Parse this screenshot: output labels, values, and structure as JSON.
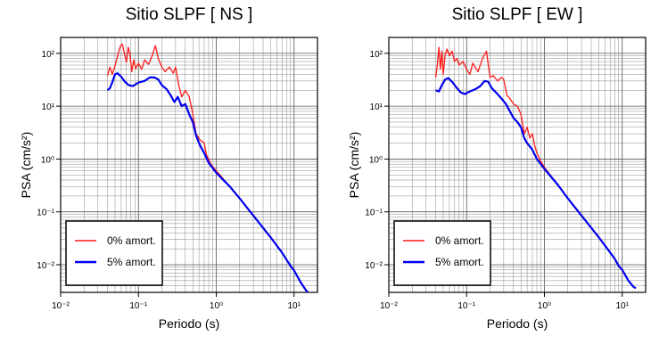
{
  "chart_data": [
    {
      "type": "line",
      "title": "Sitio SLPF [ NS ]",
      "xlabel": "Periodo (s)",
      "ylabel": "PSA (cm/s²)",
      "xscale": "log",
      "yscale": "log",
      "xlim": [
        0.01,
        20
      ],
      "ylim": [
        0.003,
        200
      ],
      "grid": true,
      "legend": "bottom-left",
      "xticks": [
        "10⁻²",
        "10⁻¹",
        "10⁰",
        "10¹"
      ],
      "yticks": [
        "10⁻²",
        "10⁻¹",
        "10⁰",
        "10¹",
        "10²"
      ],
      "series": [
        {
          "name": "0% amort.",
          "color": "#ff1a1a",
          "points": [
            [
              0.04,
              38
            ],
            [
              0.043,
              55
            ],
            [
              0.046,
              40
            ],
            [
              0.05,
              58
            ],
            [
              0.053,
              80
            ],
            [
              0.056,
              110
            ],
            [
              0.059,
              140
            ],
            [
              0.062,
              150
            ],
            [
              0.066,
              100
            ],
            [
              0.07,
              68
            ],
            [
              0.074,
              130
            ],
            [
              0.078,
              95
            ],
            [
              0.082,
              45
            ],
            [
              0.087,
              75
            ],
            [
              0.092,
              52
            ],
            [
              0.1,
              65
            ],
            [
              0.11,
              50
            ],
            [
              0.12,
              75
            ],
            [
              0.135,
              62
            ],
            [
              0.15,
              90
            ],
            [
              0.165,
              140
            ],
            [
              0.18,
              80
            ],
            [
              0.2,
              55
            ],
            [
              0.22,
              45
            ],
            [
              0.25,
              55
            ],
            [
              0.28,
              42
            ],
            [
              0.3,
              55
            ],
            [
              0.33,
              25
            ],
            [
              0.36,
              15
            ],
            [
              0.4,
              20
            ],
            [
              0.45,
              15
            ],
            [
              0.5,
              7
            ],
            [
              0.55,
              3
            ],
            [
              0.62,
              2.3
            ],
            [
              0.7,
              2.0
            ],
            [
              0.75,
              1.2
            ],
            [
              0.85,
              0.8
            ],
            [
              1.0,
              0.6
            ],
            [
              1.5,
              0.3
            ],
            [
              2,
              0.18
            ],
            [
              3,
              0.085
            ],
            [
              5,
              0.033
            ],
            [
              7,
              0.017
            ],
            [
              9,
              0.0095
            ],
            [
              10,
              0.0078
            ],
            [
              12,
              0.0048
            ],
            [
              14,
              0.0034
            ],
            [
              15,
              0.003
            ]
          ]
        },
        {
          "name": "5% amort.",
          "color": "#0000ee",
          "points": [
            [
              0.04,
              20
            ],
            [
              0.043,
              22
            ],
            [
              0.046,
              28
            ],
            [
              0.05,
              40
            ],
            [
              0.054,
              42
            ],
            [
              0.06,
              36
            ],
            [
              0.067,
              29
            ],
            [
              0.075,
              25
            ],
            [
              0.085,
              24
            ],
            [
              0.1,
              28
            ],
            [
              0.12,
              30
            ],
            [
              0.14,
              35
            ],
            [
              0.16,
              35
            ],
            [
              0.18,
              32
            ],
            [
              0.2,
              25
            ],
            [
              0.23,
              21
            ],
            [
              0.26,
              16
            ],
            [
              0.29,
              12
            ],
            [
              0.32,
              15
            ],
            [
              0.36,
              10
            ],
            [
              0.4,
              11
            ],
            [
              0.45,
              7
            ],
            [
              0.5,
              5
            ],
            [
              0.55,
              2.8
            ],
            [
              0.62,
              1.8
            ],
            [
              0.7,
              1.3
            ],
            [
              0.8,
              0.85
            ],
            [
              1.0,
              0.55
            ],
            [
              1.5,
              0.3
            ],
            [
              2,
              0.18
            ],
            [
              3,
              0.085
            ],
            [
              5,
              0.033
            ],
            [
              7,
              0.017
            ],
            [
              9,
              0.0095
            ],
            [
              10,
              0.0078
            ],
            [
              12,
              0.0048
            ],
            [
              14,
              0.0034
            ],
            [
              15,
              0.003
            ]
          ]
        }
      ]
    },
    {
      "type": "line",
      "title": "Sitio SLPF [ EW ]",
      "xlabel": "Periodo (s)",
      "ylabel": "PSA (cm/s²)",
      "xscale": "log",
      "yscale": "log",
      "xlim": [
        0.01,
        20
      ],
      "ylim": [
        0.003,
        200
      ],
      "grid": true,
      "legend": "bottom-left",
      "xticks": [
        "10⁻²",
        "10⁻¹",
        "10⁰",
        "10¹"
      ],
      "yticks": [
        "10⁻²",
        "10⁻¹",
        "10⁰",
        "10¹",
        "10²"
      ],
      "series": [
        {
          "name": "0% amort.",
          "color": "#ff1a1a",
          "points": [
            [
              0.04,
              35
            ],
            [
              0.042,
              60
            ],
            [
              0.044,
              130
            ],
            [
              0.046,
              50
            ],
            [
              0.048,
              110
            ],
            [
              0.05,
              40
            ],
            [
              0.053,
              95
            ],
            [
              0.056,
              120
            ],
            [
              0.06,
              90
            ],
            [
              0.065,
              110
            ],
            [
              0.07,
              70
            ],
            [
              0.075,
              80
            ],
            [
              0.08,
              60
            ],
            [
              0.09,
              70
            ],
            [
              0.1,
              50
            ],
            [
              0.11,
              40
            ],
            [
              0.12,
              65
            ],
            [
              0.14,
              45
            ],
            [
              0.16,
              80
            ],
            [
              0.18,
              110
            ],
            [
              0.19,
              60
            ],
            [
              0.2,
              35
            ],
            [
              0.22,
              38
            ],
            [
              0.25,
              30
            ],
            [
              0.28,
              35
            ],
            [
              0.3,
              32
            ],
            [
              0.33,
              16
            ],
            [
              0.36,
              14
            ],
            [
              0.4,
              11
            ],
            [
              0.45,
              10
            ],
            [
              0.5,
              7
            ],
            [
              0.55,
              3
            ],
            [
              0.6,
              4
            ],
            [
              0.65,
              2.5
            ],
            [
              0.7,
              3
            ],
            [
              0.75,
              1.8
            ],
            [
              0.8,
              1.3
            ],
            [
              0.9,
              0.9
            ],
            [
              1.0,
              0.7
            ],
            [
              1.5,
              0.32
            ],
            [
              2,
              0.18
            ],
            [
              3,
              0.085
            ],
            [
              5,
              0.033
            ],
            [
              7,
              0.017
            ],
            [
              8,
              0.013
            ],
            [
              9,
              0.0095
            ],
            [
              10,
              0.008
            ],
            [
              12,
              0.005
            ],
            [
              14,
              0.0038
            ],
            [
              15,
              0.0036
            ]
          ]
        },
        {
          "name": "5% amort.",
          "color": "#0000ee",
          "points": [
            [
              0.04,
              20
            ],
            [
              0.044,
              19
            ],
            [
              0.048,
              25
            ],
            [
              0.053,
              32
            ],
            [
              0.058,
              34
            ],
            [
              0.065,
              29
            ],
            [
              0.075,
              22
            ],
            [
              0.085,
              18
            ],
            [
              0.095,
              17
            ],
            [
              0.11,
              19
            ],
            [
              0.13,
              21
            ],
            [
              0.15,
              24
            ],
            [
              0.17,
              30
            ],
            [
              0.19,
              29
            ],
            [
              0.21,
              22
            ],
            [
              0.24,
              18
            ],
            [
              0.28,
              14
            ],
            [
              0.32,
              11
            ],
            [
              0.36,
              8
            ],
            [
              0.4,
              6
            ],
            [
              0.45,
              5
            ],
            [
              0.5,
              4
            ],
            [
              0.55,
              2.5
            ],
            [
              0.6,
              2.0
            ],
            [
              0.7,
              1.5
            ],
            [
              0.8,
              1.0
            ],
            [
              0.9,
              0.8
            ],
            [
              1.0,
              0.65
            ],
            [
              1.5,
              0.32
            ],
            [
              2,
              0.18
            ],
            [
              3,
              0.085
            ],
            [
              5,
              0.033
            ],
            [
              7,
              0.017
            ],
            [
              8,
              0.013
            ],
            [
              9,
              0.0095
            ],
            [
              10,
              0.008
            ],
            [
              12,
              0.005
            ],
            [
              14,
              0.0038
            ],
            [
              15,
              0.0036
            ]
          ]
        }
      ]
    }
  ]
}
